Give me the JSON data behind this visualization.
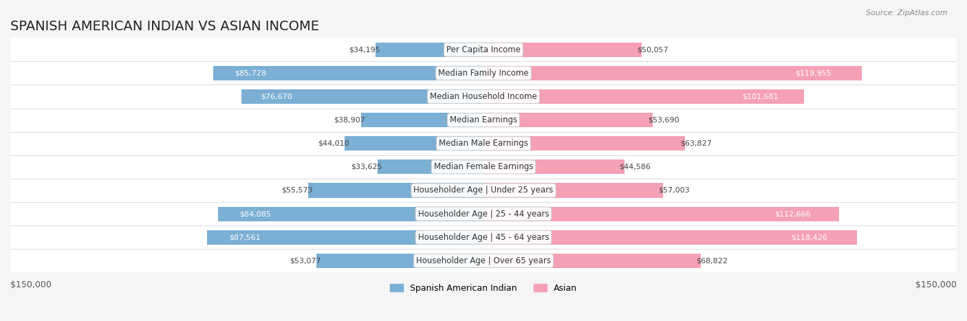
{
  "title": "SPANISH AMERICAN INDIAN VS ASIAN INCOME",
  "source": "Source: ZipAtlas.com",
  "categories": [
    "Per Capita Income",
    "Median Family Income",
    "Median Household Income",
    "Median Earnings",
    "Median Male Earnings",
    "Median Female Earnings",
    "Householder Age | Under 25 years",
    "Householder Age | 25 - 44 years",
    "Householder Age | 45 - 64 years",
    "Householder Age | Over 65 years"
  ],
  "spanish_values": [
    34195,
    85728,
    76670,
    38907,
    44010,
    33625,
    55573,
    84085,
    87561,
    53077
  ],
  "asian_values": [
    50057,
    119955,
    101681,
    53690,
    63827,
    44586,
    57003,
    112666,
    118426,
    68822
  ],
  "spanish_color": "#7BAFD4",
  "asian_color": "#F4A0B5",
  "spanish_color_dark": "#5B8DB8",
  "asian_color_dark": "#E8799A",
  "max_value": 150000,
  "legend_spanish": "Spanish American Indian",
  "legend_asian": "Asian",
  "xlabel_left": "$150,000",
  "xlabel_right": "$150,000",
  "background_color": "#f5f5f5",
  "row_bg_color": "#ffffff",
  "title_fontsize": 14,
  "label_fontsize": 8.5,
  "value_fontsize": 8
}
